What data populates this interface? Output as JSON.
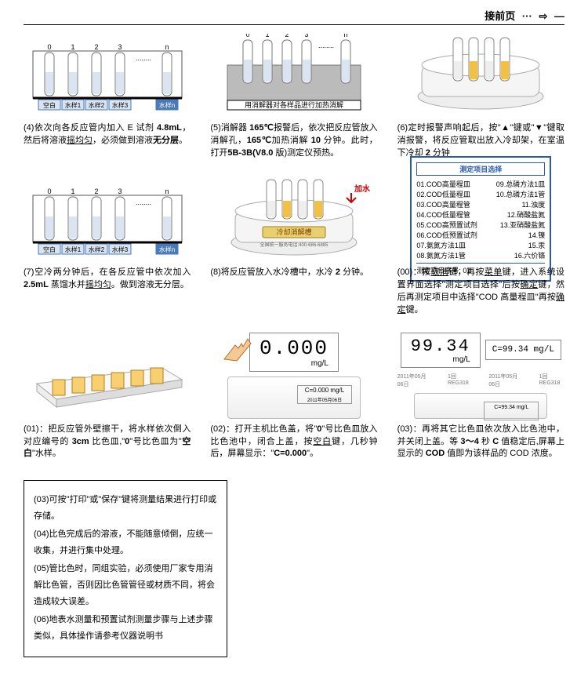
{
  "header": {
    "link_text": "接前页",
    "dots": "···",
    "arrow": "⇨"
  },
  "tubeLabels": [
    "空白",
    "水样1",
    "水样2",
    "水样3",
    "水样n"
  ],
  "tubeNums": [
    "0",
    "1",
    "2",
    "3",
    "n"
  ],
  "dotsSep": "........",
  "heaterLabel": "用消解器对各样品进行加热消解",
  "addWater": "加水",
  "coolerLabel": "冷却消解槽",
  "coolerPhone": "全国统一服务电话:400-686-6885",
  "menu": {
    "title": "测定项目选择",
    "left": [
      "01.COD高量程皿",
      "02.COD低量程皿",
      "03.COD高量程管",
      "04.COD低量程管",
      "05.COD高预置试剂",
      "06.COD低预置试剂",
      "07.氨氮方法1皿",
      "08.氨氮方法1管"
    ],
    "right": [
      "09.总磷方法1皿",
      "10.总磷方法1管",
      "11.浊度",
      "12.硝酸盐氮",
      "13.亚硝酸盐氮",
      "14.镍",
      "15.汞",
      "16.六价铬"
    ],
    "footer": "测定项目序号: 01"
  },
  "disp_zero": "0.000",
  "disp_unit": "mg/L",
  "disp_c0": "C=0.000 mg/L",
  "disp_val": "99.34",
  "disp_cval": "C=99.34 mg/L",
  "disp_date": "2011年05月06日",
  "disp_end": "1回REG318 ",
  "captions": {
    "c4": "(4)依次向各反应管内加入 E 试剂 <b>4.8mL</b>，然后将溶液<u>摇均匀</u>，必须做到溶液<b>无分层</b>。",
    "c5": "(5)消解器 <b>165℃</b>报警后，依次把反应管放入消解孔，<b>165℃</b>加热消解 <b>10</b> 分钟。此时，打开<b>5B-3B(V8.0</b> 版)测定仪预热。",
    "c6": "(6)定时报警声响起后，按\"▲\"键或\"▼\"键取消报警，将反应管取出放入冷却架，在室温下冷却 <b>2</b> 分钟",
    "c7": "(7)空冷两分钟后，在各反应管中依次加入 <b>2.5mL</b> 蒸馏水并<u>摇均匀</u>。做到溶液无分层。",
    "c8": "(8)将反应管放入水冷槽中，水冷 <b>2</b> 分钟。",
    "c00": "(00)：按<u>取消</u>键，再按<u>菜单</u>键，进入系统设置界面选择\"测定项目选择\"后按<u>确定</u>键，然后再测定项目中选择\"COD 高量程皿\"再按<u>确定</u>键。",
    "c01": "(01)：把反应管外壁擦干，将水样依次倒入对应编号的 <b>3cm</b> 比色皿,\"<b>0</b>\"号比色皿为\"<b>空白</b>\"水样。",
    "c02": "(02)：打开主机比色盖，将\"<b>0</b>\"号比色皿放入比色池中，闭合上盖，按<u>空白</u>键，几秒钟后，屏幕显示：\"<b>C=0.000</b>\"。",
    "c03": "(03)：再将其它比色皿依次放入比色池中，并关闭上盖。等 <b>3～4</b> 秒 <b>C</b> 值稳定后,屏幕上显示的 <b>COD</b> 值即为该样品的 COD 浓度。"
  },
  "notes": {
    "n1": "(03)可按\"打印\"或\"保存\"键将测量结果进行打印或存储。",
    "n2": "(04)比色完成后的溶液，不能随意倾倒，应统一收集，并进行集中处理。",
    "n3": "(05)管比色时，同组实验，必须使用厂家专用消解比色管，否则因比色管管径或材质不同，将会造成较大误差。",
    "n4": "(06)地表水测量和预置试剂测量步骤与上述步骤类似，具体操作请参考仪器说明书"
  }
}
